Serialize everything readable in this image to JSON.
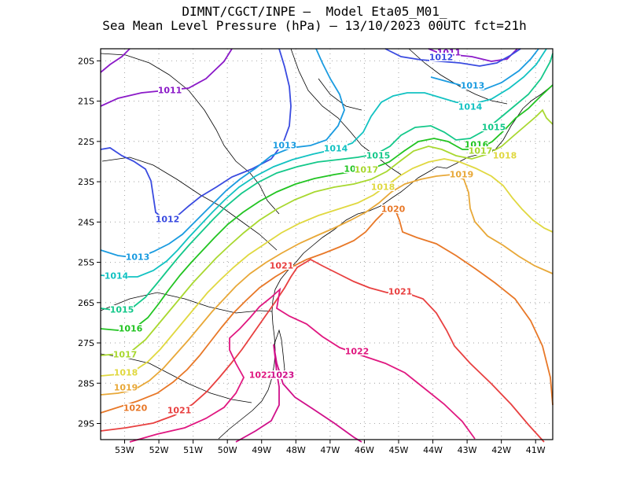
{
  "title": {
    "line1": "DIMNT/CGCT/INPE –  Model Eta05_M01_",
    "line2": "Sea Mean Level Pressure (hPa) – 13/10/2023 00UTC fct=21h"
  },
  "chart_data": {
    "type": "contour_map",
    "variable": "Sea Mean Level Pressure",
    "units": "hPa",
    "lon_range": [
      -53.7,
      -40.5
    ],
    "lat_range": [
      -29.4,
      -19.7
    ],
    "x_ticks": [
      "53W",
      "52W",
      "51W",
      "50W",
      "49W",
      "48W",
      "47W",
      "46W",
      "45W",
      "44W",
      "43W",
      "42W",
      "41W"
    ],
    "y_ticks": [
      "20S",
      "21S",
      "22S",
      "23S",
      "24S",
      "25S",
      "26S",
      "27S",
      "28S",
      "29S"
    ],
    "isobars": [
      {
        "level": 1011,
        "color": "#8b1ac8",
        "labels": [
          "1011",
          "1011"
        ]
      },
      {
        "level": 1012,
        "color": "#3a4be0",
        "labels": [
          "1012",
          "1012"
        ]
      },
      {
        "level": 1013,
        "color": "#1a9be0",
        "labels": [
          "1013",
          "1013",
          "1013"
        ]
      },
      {
        "level": 1014,
        "color": "#12c2c2",
        "labels": [
          "1014",
          "1014",
          "1014"
        ]
      },
      {
        "level": 1015,
        "color": "#14c88a",
        "labels": [
          "1015",
          "1015",
          "1015"
        ]
      },
      {
        "level": 1016,
        "color": "#22c422",
        "labels": [
          "1016",
          "1016",
          "10"
        ]
      },
      {
        "level": 1017,
        "color": "#a8d830",
        "labels": [
          "1017",
          "1017",
          "1017"
        ]
      },
      {
        "level": 1018,
        "color": "#e0d840",
        "labels": [
          "1018",
          "1018",
          "1018"
        ]
      },
      {
        "level": 1019,
        "color": "#e8a838",
        "labels": [
          "1019",
          "1019"
        ]
      },
      {
        "level": 1020,
        "color": "#e87828",
        "labels": [
          "1020",
          "1020"
        ]
      },
      {
        "level": 1021,
        "color": "#e84040",
        "labels": [
          "1021",
          "1021",
          "1021"
        ]
      },
      {
        "level": 1022,
        "color": "#e01880",
        "labels": [
          "1022",
          "1022"
        ]
      },
      {
        "level": 1023,
        "color": "#d0108a",
        "labels": [
          "1023"
        ]
      }
    ]
  }
}
